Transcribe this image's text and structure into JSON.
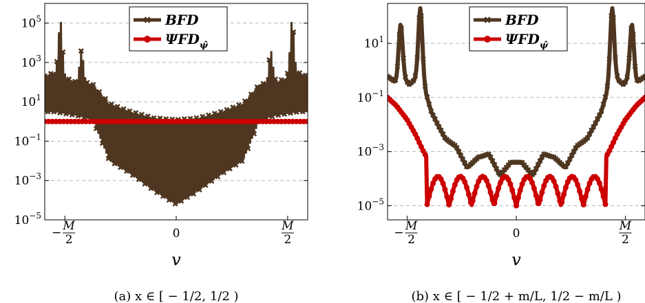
{
  "chart_data": [
    {
      "type": "line",
      "caption": "(a) x ∈ [ − 1/2, 1/2 )",
      "xlabel": "v",
      "ylabel": "",
      "yscale": "log",
      "ylim": [
        1e-05,
        1000000.0
      ],
      "xlim": [
        -1.18,
        1.18
      ],
      "x_tick_labels": [
        "−M/2",
        "0",
        "M/2"
      ],
      "x_tick_values": [
        -1,
        0,
        1
      ],
      "y_tick_labels": [
        "10^5",
        "10^3",
        "10^1",
        "10^-1",
        "10^-3",
        "10^-5"
      ],
      "y_tick_values": [
        100000.0,
        1000.0,
        10.0,
        0.1,
        0.001,
        1e-05
      ],
      "grid": "horizontal-dashed",
      "legend": "top-center",
      "series": [
        {
          "name": "BFD",
          "color": "#4e3620",
          "marker": "x",
          "envelope_x": [
            -1.18,
            -1.1,
            -0.9,
            -0.75,
            -0.6,
            -0.4,
            -0.2,
            0,
            0.2,
            0.4,
            0.6,
            0.75,
            0.9,
            1.1,
            1.18
          ],
          "upper_y": [
            200,
            300,
            100,
            80,
            8,
            3,
            1.5,
            1.2,
            1.5,
            3,
            8,
            80,
            100,
            300,
            200
          ],
          "lower_y": [
            3,
            3,
            2,
            1.2,
            0.01,
            0.002,
            0.0003,
            6e-05,
            0.0003,
            0.002,
            0.01,
            1.2,
            2,
            3,
            3
          ],
          "peaks": [
            {
              "x": -1.04,
              "y": 150000
            },
            {
              "x": -0.85,
              "y": 4000
            },
            {
              "x": 0.85,
              "y": 4000
            },
            {
              "x": 1.04,
              "y": 150000
            }
          ]
        },
        {
          "name": "ΨFD_ψ̂",
          "color": "#cc0000",
          "marker": "circle",
          "x": [
            -1.18,
            1.18
          ],
          "y": [
            1,
            1
          ]
        }
      ]
    },
    {
      "type": "line",
      "caption": "(b) x ∈ [ − 1/2 + m/L, 1/2 − m/L )",
      "xlabel": "v",
      "ylabel": "",
      "yscale": "log",
      "ylim": [
        3e-06,
        300
      ],
      "xlim": [
        -1.18,
        1.18
      ],
      "x_tick_labels": [
        "−M/2",
        "0",
        "M/2"
      ],
      "x_tick_values": [
        -1,
        0,
        1
      ],
      "y_tick_labels": [
        "10^1",
        "10^-1",
        "10^-3",
        "10^-5"
      ],
      "y_tick_values": [
        10,
        0.1,
        0.001,
        1e-05
      ],
      "grid": "horizontal-dashed",
      "legend": "top-center",
      "series": [
        {
          "name": "BFD",
          "color": "#4e3620",
          "marker": "x",
          "x": [
            -1.18,
            -1.1,
            -1.03,
            -0.98,
            -0.92,
            -0.85,
            -0.78,
            -0.72,
            -0.65,
            -0.55,
            -0.45,
            -0.35,
            -0.25,
            -0.15,
            -0.05,
            0.05,
            0.15,
            0.25,
            0.35,
            0.45,
            0.55,
            0.65,
            0.72,
            0.78,
            0.85,
            0.92,
            0.98,
            1.03,
            1.1,
            1.18
          ],
          "y": [
            0.6,
            0.35,
            0.5,
            0.3,
            0.5,
            0.3,
            0.03,
            0.01,
            0.003,
            0.0015,
            0.00025,
            0.0006,
            0.0008,
            0.00013,
            0.0004,
            0.0004,
            0.00013,
            0.0008,
            0.0006,
            0.00025,
            0.0015,
            0.003,
            0.01,
            0.03,
            0.3,
            0.5,
            0.3,
            0.5,
            0.35,
            0.6
          ],
          "peaks": [
            {
              "x": -1.06,
              "y": 50
            },
            {
              "x": -0.88,
              "y": 200
            },
            {
              "x": 0.88,
              "y": 200
            },
            {
              "x": 1.06,
              "y": 50
            }
          ]
        },
        {
          "name": "ΨFD_ψ̂",
          "color": "#cc0000",
          "marker": "circle",
          "x": [
            -1.18,
            -1.1,
            -1.0,
            -0.92,
            -0.86,
            -0.82
          ],
          "y": [
            0.1,
            0.05,
            0.015,
            0.004,
            0.0012,
            0.0006
          ],
          "mirror": true,
          "plateau_lobes": {
            "from": -0.82,
            "to": 0.82,
            "count": 8,
            "top": 0.00012,
            "bottom": 1e-05
          }
        }
      ]
    }
  ]
}
